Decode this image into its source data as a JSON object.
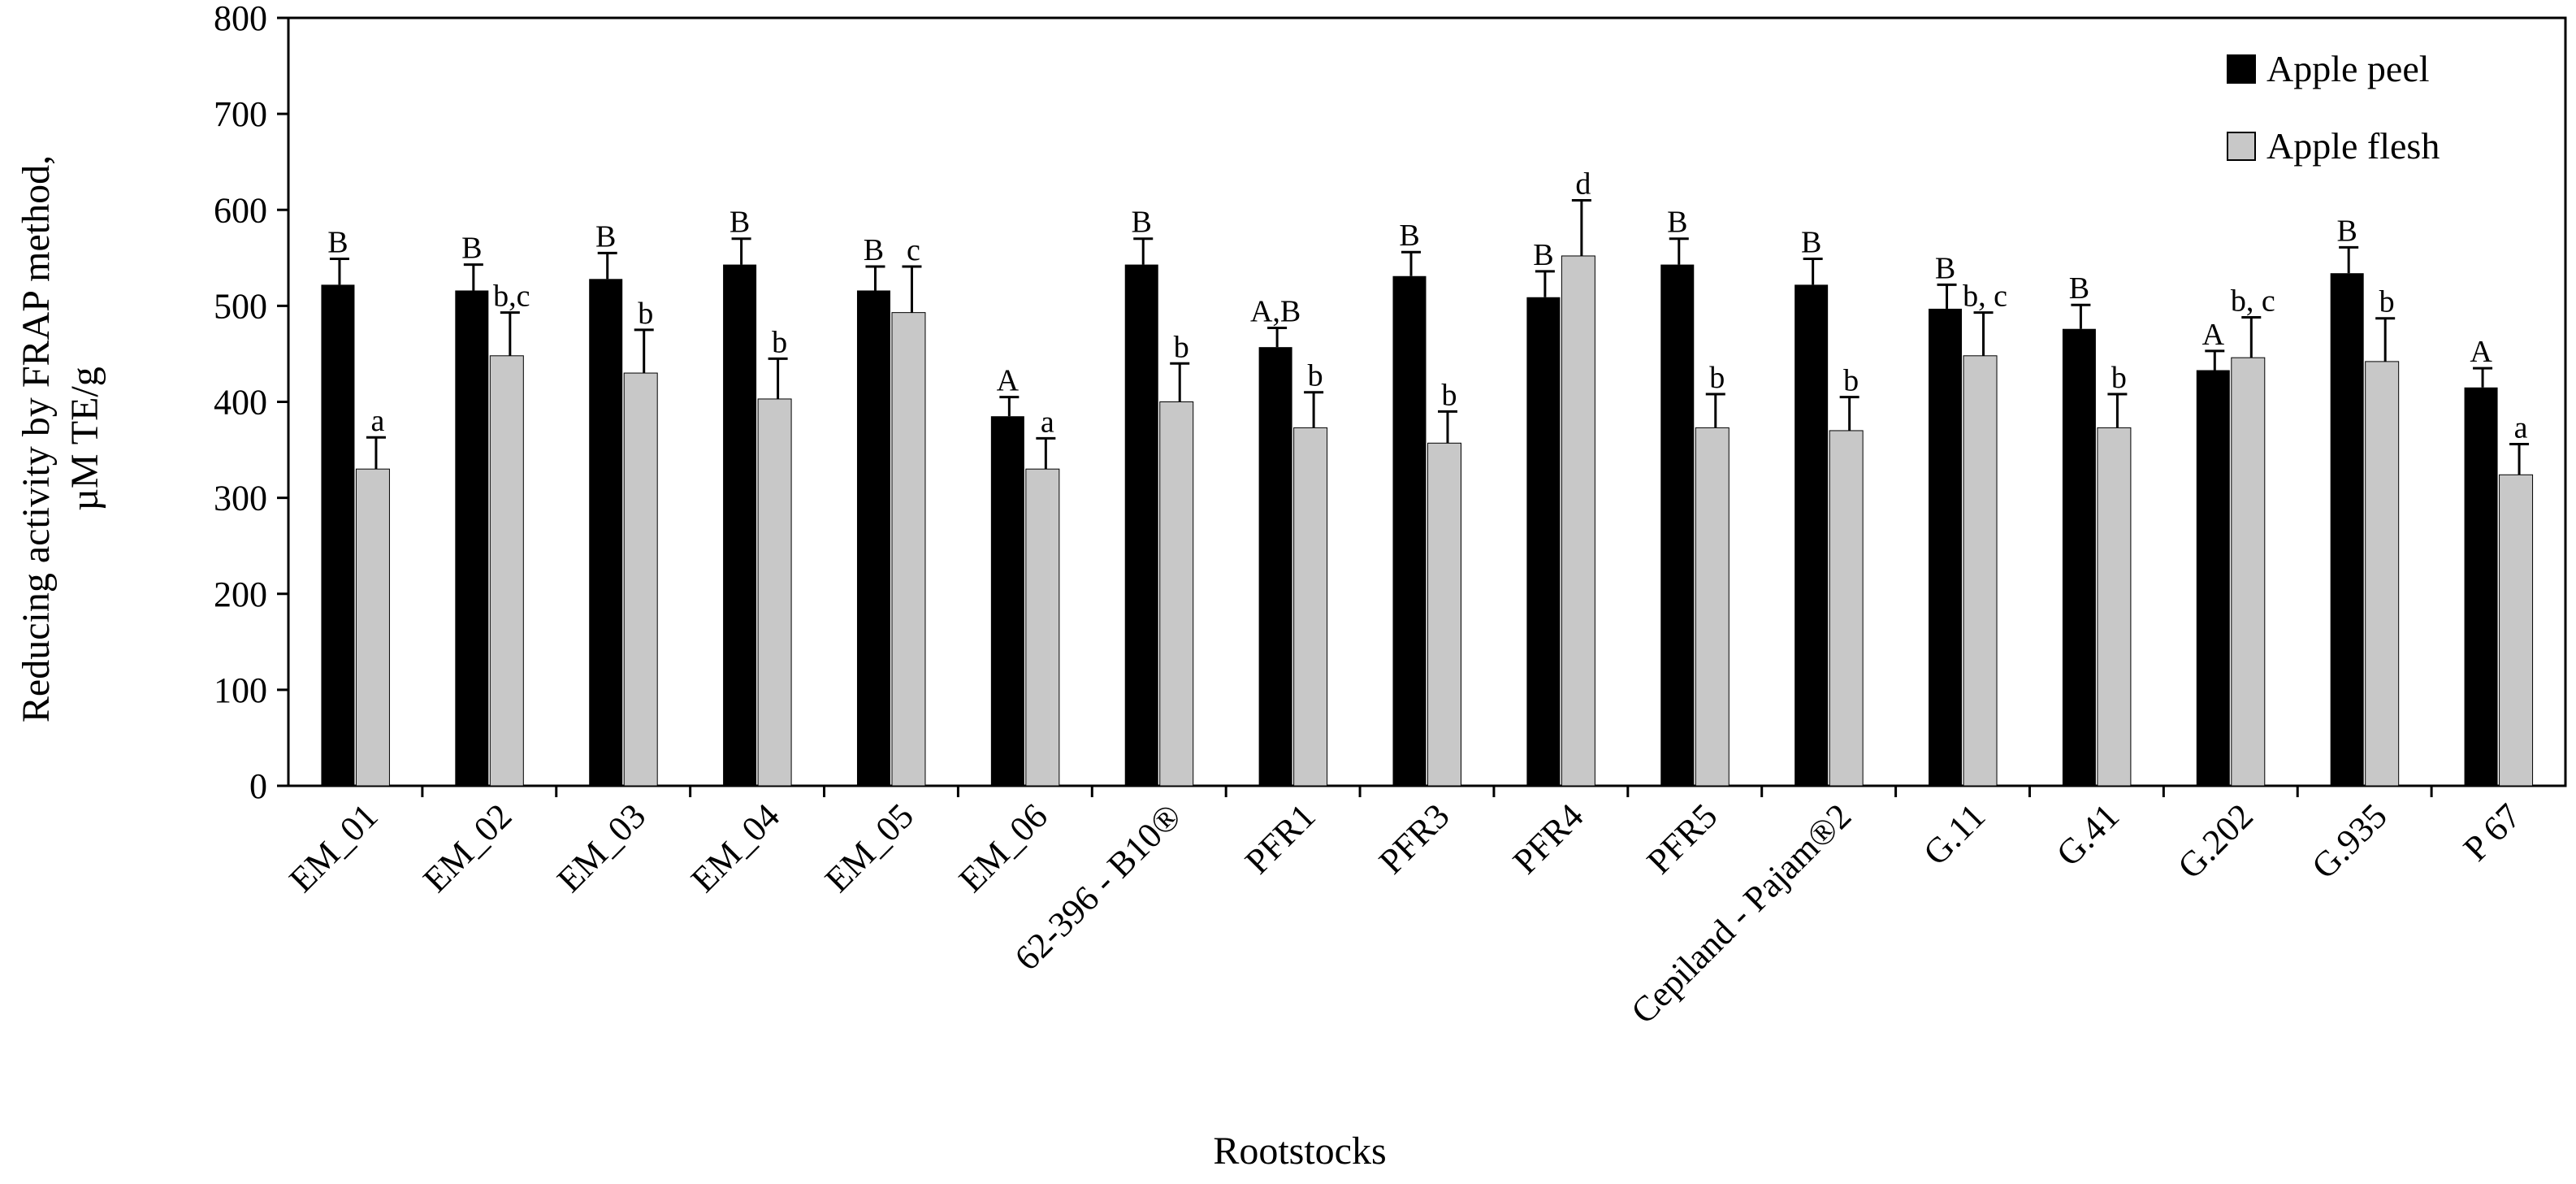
{
  "chart_data": {
    "type": "bar",
    "title": "",
    "xlabel": "Rootstocks",
    "ylabel_line1": "Reducing activity by FRAP method,",
    "ylabel_line2": "µM TE/g",
    "ylim": [
      0,
      800
    ],
    "yticks": [
      0,
      100,
      200,
      300,
      400,
      500,
      600,
      700,
      800
    ],
    "grid": false,
    "legend_position": "top-right",
    "categories": [
      "EM_01",
      "EM_02",
      "EM_03",
      "EM_04",
      "EM_05",
      "EM_06",
      "62-396 - B10®",
      "PFR1",
      "PFR3",
      "PFR4",
      "PFR5",
      "Cepiland - Pajam®2",
      "G.11",
      "G.41",
      "G.202",
      "G.935",
      "P 67"
    ],
    "series": [
      {
        "name": "Apple peel",
        "color": "#000000",
        "values": [
          522,
          516,
          528,
          543,
          516,
          385,
          543,
          457,
          531,
          509,
          543,
          522,
          497,
          476,
          433,
          534,
          415
        ],
        "errors": [
          27,
          27,
          27,
          27,
          25,
          20,
          27,
          20,
          25,
          27,
          27,
          27,
          25,
          25,
          20,
          27,
          20
        ],
        "labels": [
          "B",
          "B",
          "B",
          "B",
          "B",
          "A",
          "B",
          "A,B",
          "B",
          "B",
          "B",
          "B",
          "B",
          "B",
          "A",
          "B",
          "A"
        ]
      },
      {
        "name": "Apple flesh",
        "color": "#c8c8c8",
        "values": [
          330,
          448,
          430,
          403,
          493,
          330,
          400,
          373,
          357,
          552,
          373,
          370,
          448,
          373,
          446,
          442,
          324
        ],
        "errors": [
          33,
          45,
          45,
          42,
          48,
          32,
          40,
          37,
          33,
          58,
          35,
          35,
          45,
          35,
          42,
          45,
          32
        ],
        "labels": [
          "a",
          "b,c",
          "b",
          "b",
          "c",
          "a",
          "b",
          "b",
          "b",
          "d",
          "b",
          "b",
          "b, c",
          "b",
          "b, c",
          "b",
          "a"
        ]
      }
    ]
  }
}
